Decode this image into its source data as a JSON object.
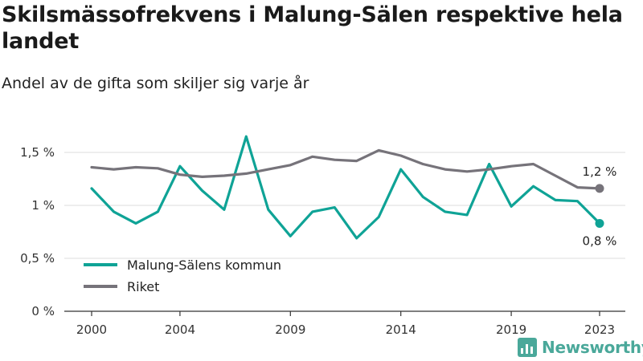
{
  "title": "Skilsmässofrekvens i Malung-Sälen respektive hela landet",
  "subtitle": "Andel av de gifta som skiljer sig varje år",
  "brand": {
    "name": "Newsworthy",
    "color": "#4aa89a",
    "icon": "bar-chart-logo-icon"
  },
  "chart_data": {
    "type": "line",
    "x": [
      2000,
      2001,
      2002,
      2003,
      2004,
      2005,
      2006,
      2007,
      2008,
      2009,
      2010,
      2011,
      2012,
      2013,
      2014,
      2015,
      2016,
      2017,
      2018,
      2019,
      2020,
      2021,
      2022,
      2023
    ],
    "x_ticks": [
      "2000",
      "2004",
      "2009",
      "2014",
      "2019",
      "2023"
    ],
    "y_ticks": [
      "0 %",
      "0,5 %",
      "1 %",
      "1,5 %"
    ],
    "ylim": [
      0,
      1.75
    ],
    "grid": true,
    "legend": "bottom-left",
    "series": [
      {
        "name": "Malung-Sälens kommun",
        "color": "#0fa396",
        "end_label": "0,8 %",
        "values": [
          1.16,
          0.94,
          0.83,
          0.94,
          1.37,
          1.14,
          0.96,
          1.65,
          0.96,
          0.71,
          0.94,
          0.98,
          0.69,
          0.89,
          1.34,
          1.08,
          0.94,
          0.91,
          1.39,
          0.99,
          1.18,
          1.05,
          1.04,
          0.83
        ]
      },
      {
        "name": "Riket",
        "color": "#76737a",
        "end_label": "1,2 %",
        "values": [
          1.36,
          1.34,
          1.36,
          1.35,
          1.29,
          1.27,
          1.28,
          1.3,
          1.34,
          1.38,
          1.46,
          1.43,
          1.42,
          1.52,
          1.47,
          1.39,
          1.34,
          1.32,
          1.34,
          1.37,
          1.39,
          1.28,
          1.17,
          1.16
        ]
      }
    ]
  }
}
